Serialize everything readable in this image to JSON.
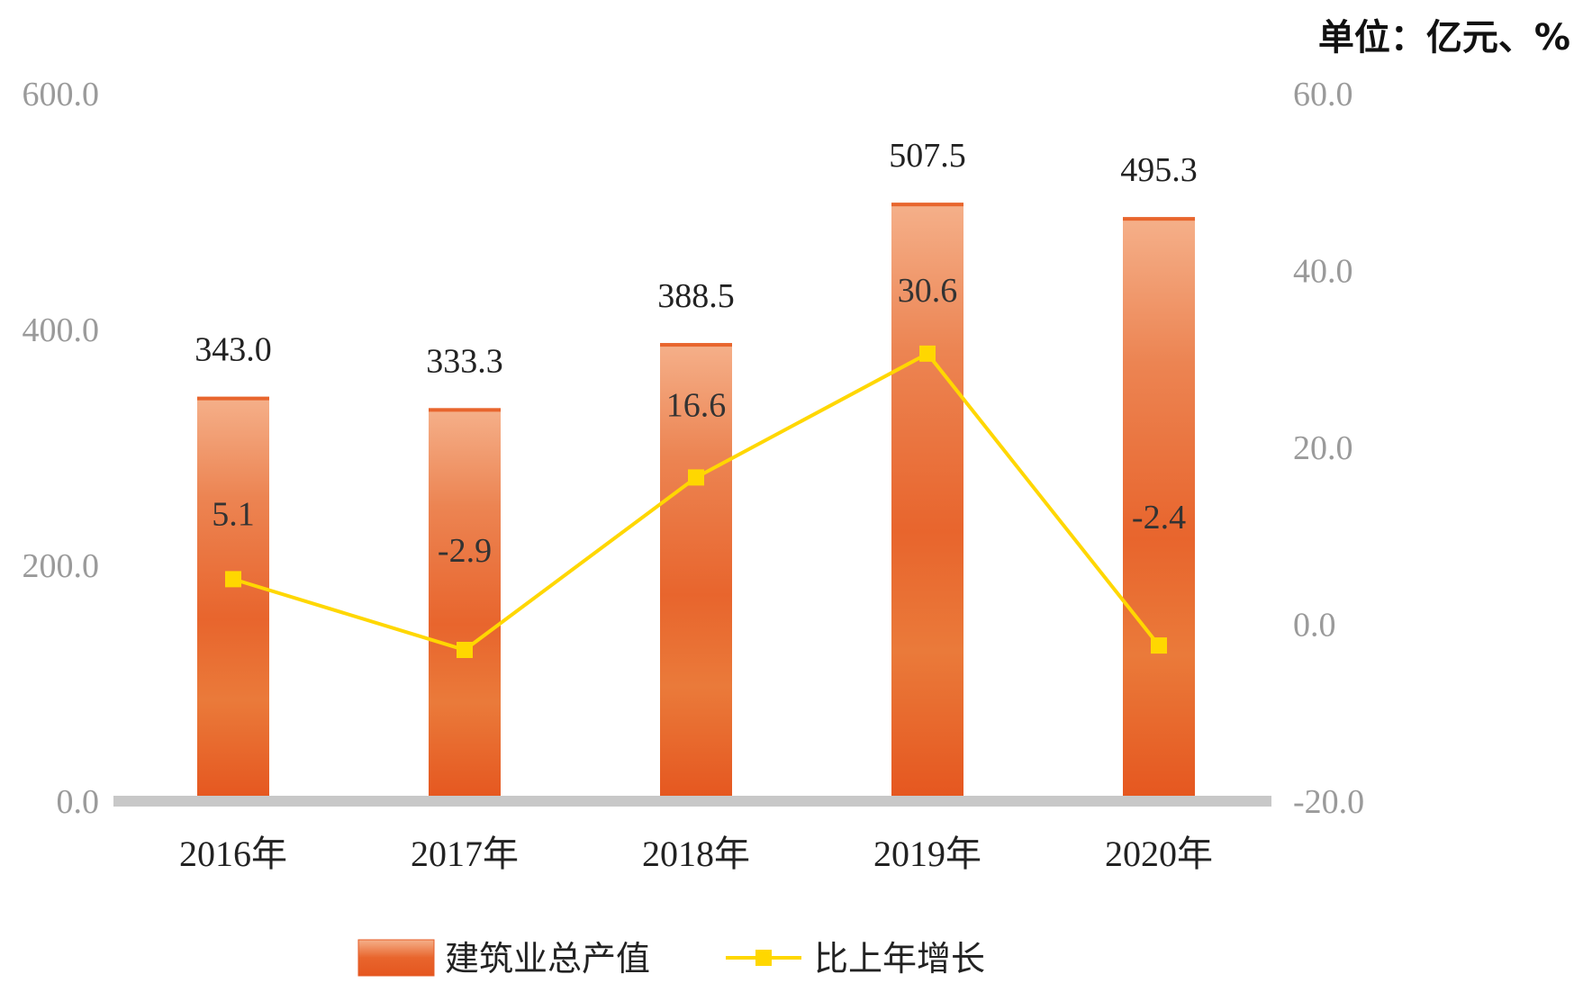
{
  "unit": "单位：亿元、%",
  "legend": {
    "bar_label": "建筑业总产值",
    "line_label": "比上年增长"
  },
  "colors": {
    "bar_light": "#f3a57e",
    "bar_dark": "#e55a24",
    "line": "#ffd700",
    "axis": "#c8c8c8",
    "tick_text": "#9a9a9a"
  },
  "chart_data": {
    "type": "bar",
    "categories": [
      "2016年",
      "2017年",
      "2018年",
      "2019年",
      "2020年"
    ],
    "series": [
      {
        "name": "建筑业总产值",
        "type": "bar",
        "axis": "left",
        "values": [
          343.0,
          333.3,
          388.5,
          507.5,
          495.3
        ],
        "labels": [
          "343.0",
          "333.3",
          "388.5",
          "507.5",
          "495.3"
        ]
      },
      {
        "name": "比上年增长",
        "type": "line",
        "axis": "right",
        "marker": "square",
        "values": [
          5.1,
          -2.9,
          16.6,
          30.6,
          -2.4
        ],
        "labels": [
          "5.1",
          "-2.9",
          "16.6",
          "30.6",
          "-2.4"
        ]
      }
    ],
    "y_left": {
      "range": [
        0,
        600
      ],
      "ticks": [
        "0.0",
        "200.0",
        "400.0",
        "600.0"
      ],
      "tick_values": [
        0,
        200,
        400,
        600
      ]
    },
    "y_right": {
      "range": [
        -20,
        60
      ],
      "ticks": [
        "-20.0",
        "0.0",
        "20.0",
        "40.0",
        "60.0"
      ],
      "tick_values": [
        -20,
        0,
        20,
        40,
        60
      ]
    },
    "grid": false,
    "legend_position": "bottom"
  }
}
